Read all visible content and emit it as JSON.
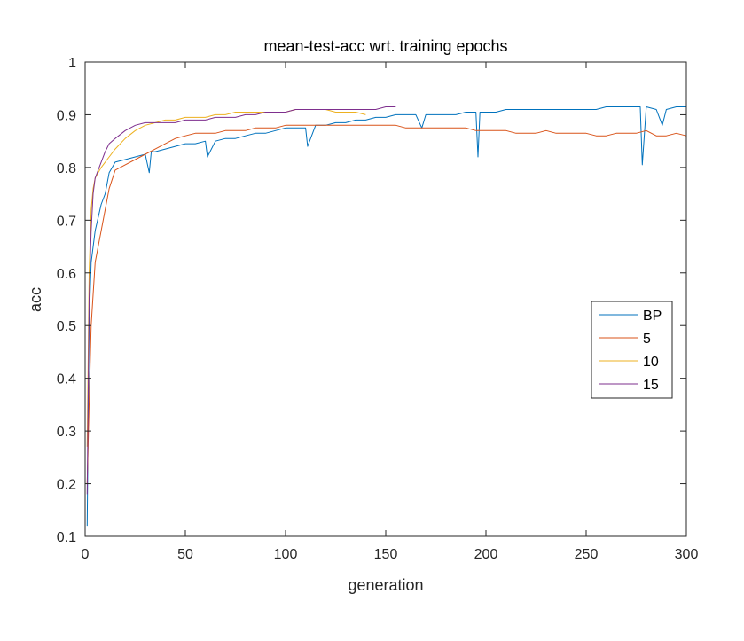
{
  "chart_data": {
    "type": "line",
    "title": "mean-test-acc wrt. training epochs",
    "xlabel": "generation",
    "ylabel": "acc",
    "xlim": [
      0,
      300
    ],
    "ylim": [
      0.1,
      1
    ],
    "xticks": [
      "0",
      "50",
      "100",
      "150",
      "200",
      "250",
      "300"
    ],
    "yticks": [
      "0.1",
      "0.2",
      "0.3",
      "0.4",
      "0.5",
      "0.6",
      "0.7",
      "0.8",
      "0.9",
      "1"
    ],
    "grid": false,
    "legend_position": "right",
    "series": [
      {
        "name": "BP",
        "color": "#0072BD",
        "x": [
          1,
          2,
          3,
          5,
          8,
          10,
          12,
          15,
          20,
          25,
          30,
          32,
          33,
          35,
          40,
          45,
          50,
          55,
          60,
          61,
          65,
          70,
          75,
          80,
          85,
          90,
          95,
          100,
          105,
          110,
          111,
          115,
          120,
          125,
          130,
          135,
          140,
          145,
          150,
          155,
          160,
          165,
          168,
          170,
          175,
          180,
          185,
          190,
          195,
          196,
          197,
          200,
          205,
          210,
          215,
          220,
          225,
          230,
          235,
          240,
          245,
          250,
          255,
          260,
          265,
          270,
          275,
          277,
          278,
          280,
          285,
          288,
          290,
          295,
          300
        ],
        "y": [
          0.12,
          0.5,
          0.62,
          0.68,
          0.73,
          0.75,
          0.79,
          0.81,
          0.815,
          0.82,
          0.825,
          0.79,
          0.83,
          0.83,
          0.835,
          0.84,
          0.845,
          0.845,
          0.85,
          0.82,
          0.85,
          0.855,
          0.855,
          0.86,
          0.865,
          0.865,
          0.87,
          0.875,
          0.875,
          0.875,
          0.84,
          0.88,
          0.88,
          0.885,
          0.885,
          0.89,
          0.89,
          0.895,
          0.895,
          0.9,
          0.9,
          0.9,
          0.875,
          0.9,
          0.9,
          0.9,
          0.9,
          0.905,
          0.905,
          0.82,
          0.905,
          0.905,
          0.905,
          0.91,
          0.91,
          0.91,
          0.91,
          0.91,
          0.91,
          0.91,
          0.91,
          0.91,
          0.91,
          0.915,
          0.915,
          0.915,
          0.915,
          0.915,
          0.805,
          0.915,
          0.91,
          0.88,
          0.91,
          0.915,
          0.915
        ]
      },
      {
        "name": "5",
        "color": "#D95319",
        "x": [
          1,
          2,
          3,
          5,
          8,
          10,
          12,
          15,
          20,
          25,
          30,
          35,
          40,
          45,
          50,
          55,
          60,
          65,
          70,
          75,
          80,
          85,
          90,
          95,
          100,
          105,
          110,
          115,
          120,
          125,
          130,
          135,
          140,
          145,
          150,
          155,
          160,
          165,
          170,
          175,
          180,
          185,
          190,
          195,
          200,
          205,
          210,
          215,
          220,
          225,
          230,
          235,
          240,
          245,
          250,
          255,
          260,
          265,
          270,
          275,
          280,
          285,
          290,
          295,
          300
        ],
        "y": [
          0.2,
          0.35,
          0.5,
          0.62,
          0.68,
          0.72,
          0.76,
          0.795,
          0.805,
          0.815,
          0.825,
          0.835,
          0.845,
          0.855,
          0.86,
          0.865,
          0.865,
          0.865,
          0.87,
          0.87,
          0.87,
          0.875,
          0.875,
          0.875,
          0.88,
          0.88,
          0.88,
          0.88,
          0.88,
          0.88,
          0.88,
          0.88,
          0.88,
          0.88,
          0.88,
          0.88,
          0.875,
          0.875,
          0.875,
          0.875,
          0.875,
          0.875,
          0.875,
          0.87,
          0.87,
          0.87,
          0.87,
          0.865,
          0.865,
          0.865,
          0.87,
          0.865,
          0.865,
          0.865,
          0.865,
          0.86,
          0.86,
          0.865,
          0.865,
          0.865,
          0.87,
          0.86,
          0.86,
          0.865,
          0.86
        ]
      },
      {
        "name": "10",
        "color": "#EDB120",
        "x": [
          1,
          2,
          3,
          4,
          5,
          8,
          10,
          12,
          15,
          20,
          25,
          30,
          35,
          40,
          45,
          50,
          55,
          60,
          65,
          70,
          75,
          80,
          85,
          90,
          95,
          100,
          105,
          110,
          115,
          120,
          125,
          130,
          135,
          140
        ],
        "y": [
          0.27,
          0.6,
          0.72,
          0.76,
          0.78,
          0.8,
          0.81,
          0.82,
          0.835,
          0.855,
          0.87,
          0.88,
          0.885,
          0.89,
          0.89,
          0.895,
          0.895,
          0.895,
          0.9,
          0.9,
          0.905,
          0.905,
          0.905,
          0.905,
          0.905,
          0.905,
          0.91,
          0.91,
          0.91,
          0.91,
          0.905,
          0.905,
          0.905,
          0.9
        ]
      },
      {
        "name": "15",
        "color": "#7E2F8E",
        "x": [
          1,
          2,
          3,
          4,
          5,
          8,
          10,
          12,
          15,
          20,
          25,
          30,
          35,
          40,
          45,
          50,
          55,
          60,
          65,
          70,
          75,
          80,
          85,
          90,
          95,
          100,
          105,
          110,
          115,
          120,
          125,
          130,
          135,
          140,
          145,
          150,
          155
        ],
        "y": [
          0.18,
          0.55,
          0.68,
          0.75,
          0.78,
          0.81,
          0.83,
          0.845,
          0.855,
          0.87,
          0.88,
          0.885,
          0.885,
          0.885,
          0.885,
          0.89,
          0.89,
          0.89,
          0.895,
          0.895,
          0.895,
          0.9,
          0.9,
          0.905,
          0.905,
          0.905,
          0.91,
          0.91,
          0.91,
          0.91,
          0.91,
          0.91,
          0.91,
          0.91,
          0.91,
          0.915,
          0.915
        ]
      }
    ]
  }
}
